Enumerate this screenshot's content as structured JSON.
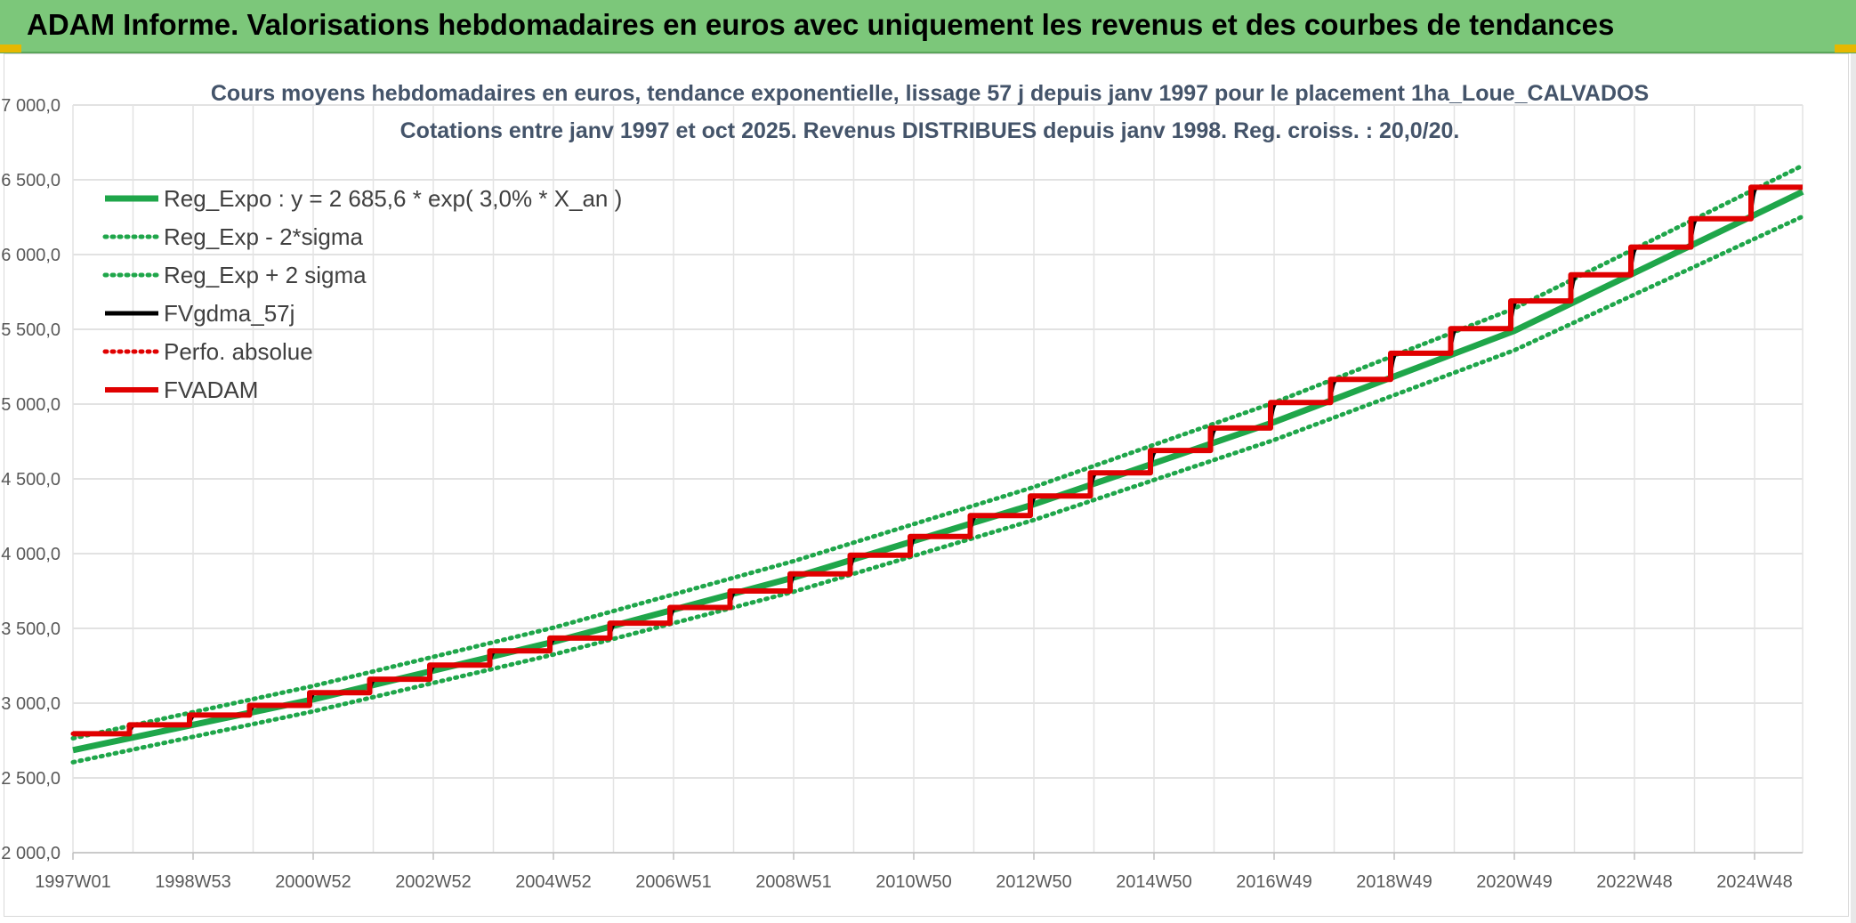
{
  "banner": {
    "title": "ADAM Informe. Valorisations hebdomadaires en euros avec uniquement les revenus et des courbes de tendances",
    "background": "#7cc77a"
  },
  "chart_data": {
    "type": "line",
    "title": "Cours moyens hebdomadaires en euros, tendance exponentielle, lissage 57 j depuis janv 1997 pour le placement 1ha_Loue_CALVADOS",
    "subtitle": "Cotations entre janv 1997 et oct 2025. Revenus DISTRIBUES depuis janv 1998. Reg. croiss. : 20,0/20.",
    "xlabel": "",
    "ylabel": "",
    "ylim": [
      2000,
      7000
    ],
    "yticks": [
      "2 000,0",
      "2 500,0",
      "3 000,0",
      "3 500,0",
      "4 000,0",
      "4 500,0",
      "5 000,0",
      "5 500,0",
      "6 000,0",
      "6 500,0",
      "7 000,0"
    ],
    "xlim": [
      1997.0,
      2025.8
    ],
    "xticks": [
      {
        "label": "1997W01",
        "x": 1997.0
      },
      {
        "label": "1998W53",
        "x": 1999.0
      },
      {
        "label": "2000W52",
        "x": 2001.0
      },
      {
        "label": "2002W52",
        "x": 2003.0
      },
      {
        "label": "2004W52",
        "x": 2005.0
      },
      {
        "label": "2006W51",
        "x": 2007.0
      },
      {
        "label": "2008W51",
        "x": 2009.0
      },
      {
        "label": "2010W50",
        "x": 2011.0
      },
      {
        "label": "2012W50",
        "x": 2013.0
      },
      {
        "label": "2014W50",
        "x": 2015.0
      },
      {
        "label": "2016W49",
        "x": 2017.0
      },
      {
        "label": "2018W49",
        "x": 2019.0
      },
      {
        "label": "2020W49",
        "x": 2021.0
      },
      {
        "label": "2022W48",
        "x": 2023.0
      },
      {
        "label": "2024W48",
        "x": 2025.0
      }
    ],
    "grid": true,
    "legend_position": "top-left",
    "series": [
      {
        "name": "Reg_Expo : y = 2 685,6 * exp( 3,0% *  X_an )",
        "color": "#1fa64a",
        "style": "solid-thick",
        "x": [
          1997.0,
          2001.0,
          2005.0,
          2009.0,
          2013.0,
          2017.0,
          2021.0,
          2025.8
        ],
        "values": [
          2685.6,
          3025,
          3410,
          3840,
          4330,
          4880,
          5490,
          6420
        ]
      },
      {
        "name": "Reg_Exp - 2*sigma",
        "color": "#1fa64a",
        "style": "dotted",
        "x": [
          1997.0,
          2001.0,
          2005.0,
          2009.0,
          2013.0,
          2017.0,
          2021.0,
          2025.8
        ],
        "values": [
          2605,
          2945,
          3325,
          3745,
          4225,
          4760,
          5360,
          6255
        ]
      },
      {
        "name": "Reg_Exp + 2 sigma",
        "color": "#1fa64a",
        "style": "dotted",
        "x": [
          1997.0,
          2001.0,
          2005.0,
          2009.0,
          2013.0,
          2017.0,
          2021.0,
          2025.8
        ],
        "values": [
          2765,
          3115,
          3505,
          3950,
          4445,
          5010,
          5640,
          6595
        ]
      },
      {
        "name": "FVgdma_57j",
        "color": "#000000",
        "style": "solid-smooth-steps",
        "x": [
          1997.0,
          1998.0,
          1999.0,
          2000.0,
          2001.0,
          2002.0,
          2003.0,
          2004.0,
          2005.0,
          2006.0,
          2007.0,
          2008.0,
          2009.0,
          2010.0,
          2011.0,
          2012.0,
          2013.0,
          2014.0,
          2015.0,
          2016.0,
          2017.0,
          2018.0,
          2019.0,
          2020.0,
          2021.0,
          2022.0,
          2023.0,
          2024.0,
          2025.0
        ],
        "values": [
          2795,
          2855,
          2920,
          2985,
          3070,
          3160,
          3255,
          3350,
          3435,
          3535,
          3640,
          3750,
          3865,
          3990,
          4115,
          4255,
          4385,
          4540,
          4690,
          4840,
          5010,
          5165,
          5340,
          5505,
          5690,
          5865,
          6050,
          6240,
          6450
        ]
      },
      {
        "name": "Perfo. absolue",
        "color": "#e00000",
        "style": "dotted",
        "x": [
          1997.0,
          1998.0,
          1999.0,
          2000.0,
          2001.0,
          2002.0,
          2003.0,
          2004.0,
          2005.0,
          2006.0,
          2007.0,
          2008.0,
          2009.0,
          2010.0,
          2011.0,
          2012.0,
          2013.0,
          2014.0,
          2015.0,
          2016.0,
          2017.0,
          2018.0,
          2019.0,
          2020.0,
          2021.0,
          2022.0,
          2023.0,
          2024.0,
          2025.0
        ],
        "values": [
          2795,
          2855,
          2920,
          2985,
          3070,
          3160,
          3255,
          3350,
          3435,
          3535,
          3640,
          3750,
          3865,
          3990,
          4115,
          4255,
          4385,
          4540,
          4690,
          4840,
          5010,
          5165,
          5340,
          5505,
          5690,
          5865,
          6050,
          6240,
          6450
        ]
      },
      {
        "name": "FVADAM",
        "color": "#e00000",
        "style": "steps-thick",
        "x": [
          1997.0,
          1998.0,
          1999.0,
          2000.0,
          2001.0,
          2002.0,
          2003.0,
          2004.0,
          2005.0,
          2006.0,
          2007.0,
          2008.0,
          2009.0,
          2010.0,
          2011.0,
          2012.0,
          2013.0,
          2014.0,
          2015.0,
          2016.0,
          2017.0,
          2018.0,
          2019.0,
          2020.0,
          2021.0,
          2022.0,
          2023.0,
          2024.0,
          2025.0
        ],
        "values": [
          2795,
          2855,
          2920,
          2985,
          3070,
          3160,
          3255,
          3350,
          3435,
          3535,
          3640,
          3750,
          3865,
          3990,
          4115,
          4255,
          4385,
          4540,
          4690,
          4840,
          5010,
          5165,
          5340,
          5505,
          5690,
          5865,
          6050,
          6240,
          6450
        ]
      }
    ]
  }
}
